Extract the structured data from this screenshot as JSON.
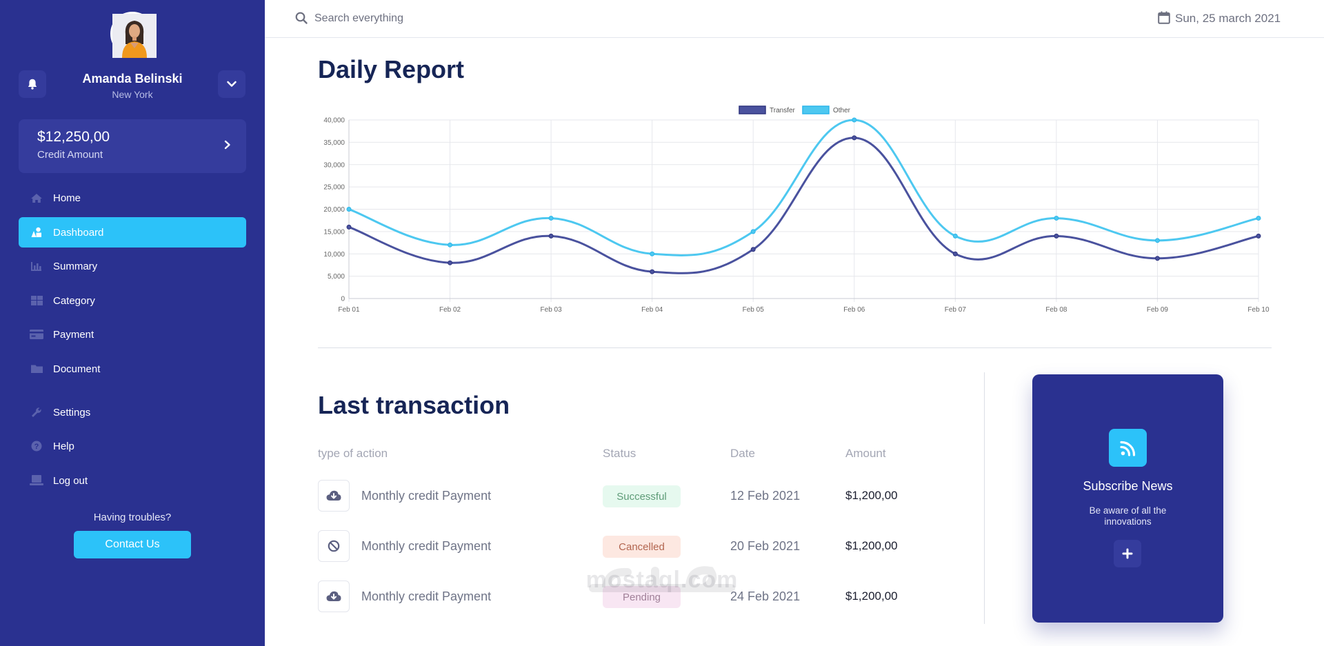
{
  "user": {
    "name": "Amanda Belinski",
    "city": "New York"
  },
  "credit": {
    "amount": "$12,250,00",
    "label": "Credit Amount"
  },
  "nav": {
    "items": [
      {
        "label": "Home",
        "icon": "home-icon"
      },
      {
        "label": "Dashboard",
        "icon": "shapes-icon"
      },
      {
        "label": "Summary",
        "icon": "bar-chart-icon"
      },
      {
        "label": "Category",
        "icon": "grid-icon"
      },
      {
        "label": "Payment",
        "icon": "card-icon"
      },
      {
        "label": "Document",
        "icon": "folder-icon"
      },
      {
        "label": "Settings",
        "icon": "wrench-icon"
      },
      {
        "label": "Help",
        "icon": "question-icon"
      },
      {
        "label": "Log out",
        "icon": "logout-icon"
      }
    ],
    "active": "Dashboard"
  },
  "support": {
    "text": "Having troubles?",
    "button": "Contact Us"
  },
  "search": {
    "placeholder": "Search everything"
  },
  "date": "Sun, 25 march 2021",
  "daily_report": {
    "title": "Daily Report"
  },
  "colors": {
    "sidebar": "#2a3190",
    "accent": "#2cc2f9",
    "transfer": "#4a529e",
    "other": "#4dc8f0"
  },
  "chart_data": {
    "type": "line",
    "title": "",
    "categories": [
      "Feb 01",
      "Feb 02",
      "Feb 03",
      "Feb 04",
      "Feb 05",
      "Feb 06",
      "Feb 07",
      "Feb 08",
      "Feb 09",
      "Feb 10"
    ],
    "series": [
      {
        "name": "Transfer",
        "values": [
          16000,
          8000,
          14000,
          6000,
          11000,
          36000,
          10000,
          14000,
          9000,
          14000
        ]
      },
      {
        "name": "Other",
        "values": [
          20000,
          12000,
          18000,
          10000,
          15000,
          40000,
          14000,
          18000,
          13000,
          18000
        ]
      }
    ],
    "yticks": [
      "0",
      "5,000",
      "10,000",
      "15,000",
      "20,000",
      "25,000",
      "30,000",
      "35,000",
      "40,000"
    ],
    "ylim": [
      0,
      40000
    ],
    "xlabel": "",
    "ylabel": "",
    "grid": true,
    "legend": "top-center"
  },
  "transactions": {
    "title": "Last transaction",
    "headers": {
      "action": "type of action",
      "status": "Status",
      "date": "Date",
      "amount": "Amount"
    },
    "rows": [
      {
        "icon": "cloud-download-icon",
        "action": "Monthly credit Payment",
        "status": "Successful",
        "date": "12 Feb 2021",
        "amount": "$1,200,00"
      },
      {
        "icon": "ban-icon",
        "action": "Monthly credit Payment",
        "status": "Cancelled",
        "date": "20 Feb 2021",
        "amount": "$1,200,00"
      },
      {
        "icon": "cloud-download-icon",
        "action": "Monthly credit Payment",
        "status": "Pending",
        "date": "24 Feb 2021",
        "amount": "$1,200,00"
      }
    ]
  },
  "subscribe": {
    "title": "Subscribe News",
    "description": "Be aware of all the innovations"
  },
  "watermark": {
    "text": "mostaql.com"
  }
}
